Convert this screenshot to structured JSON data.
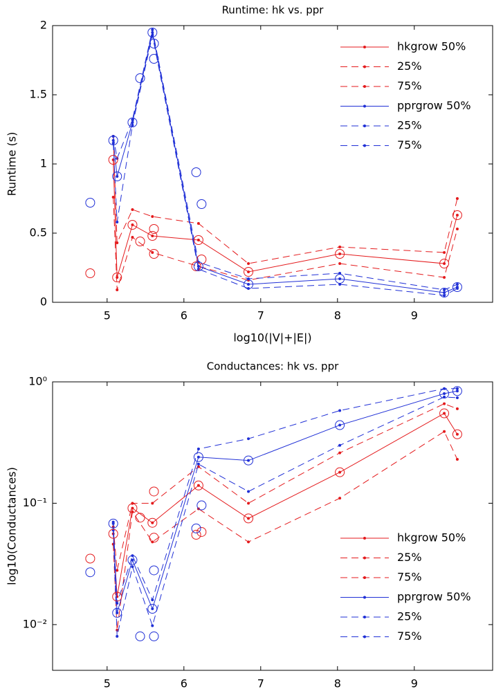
{
  "chart_data": [
    {
      "type": "line",
      "title": "Runtime: hk vs. ppr",
      "xlabel": "log10(|V|+|E|)",
      "ylabel": "Runtime (s)",
      "xlim": [
        4.29,
        10.02
      ],
      "ylim": [
        0,
        2
      ],
      "xticks": [
        5,
        6,
        7,
        8,
        9
      ],
      "yticks": [
        0,
        0.5,
        1,
        1.5,
        2
      ],
      "log_y": false,
      "legend": "upper right",
      "x": [
        5.08,
        5.13,
        5.33,
        5.59,
        6.19,
        6.84,
        8.03,
        9.39,
        9.56
      ],
      "series": [
        {
          "name": "hkgrow 50%",
          "color": "#e41a1c",
          "dashed": false,
          "values": [
            1.03,
            0.18,
            0.56,
            0.48,
            0.45,
            0.22,
            0.35,
            0.28,
            0.63
          ]
        },
        {
          "name": "25%",
          "color": "#e41a1c",
          "dashed": true,
          "values": [
            0.76,
            0.09,
            0.47,
            0.36,
            0.26,
            0.16,
            0.28,
            0.18,
            0.53
          ]
        },
        {
          "name": "75%",
          "color": "#e41a1c",
          "dashed": true,
          "values": [
            1.2,
            0.43,
            0.67,
            0.62,
            0.57,
            0.28,
            0.4,
            0.36,
            0.75
          ]
        },
        {
          "name": "pprgrow 50%",
          "color": "#1f2fd6",
          "dashed": false,
          "values": [
            1.17,
            0.91,
            1.3,
            1.95,
            0.26,
            0.13,
            0.17,
            0.07,
            0.11
          ]
        },
        {
          "name": "25%",
          "color": "#1f2fd6",
          "dashed": true,
          "values": [
            1.15,
            0.58,
            1.28,
            1.93,
            0.24,
            0.1,
            0.13,
            0.05,
            0.1
          ]
        },
        {
          "name": "75%",
          "color": "#1f2fd6",
          "dashed": true,
          "values": [
            1.2,
            1.04,
            1.32,
            1.97,
            0.29,
            0.17,
            0.21,
            0.09,
            0.13
          ]
        }
      ],
      "circles": [
        {
          "color": "#e41a1c",
          "x": [
            4.78,
            5.08,
            5.13,
            5.33,
            5.43,
            5.59,
            5.61,
            6.16,
            6.19,
            6.23,
            6.84,
            8.03,
            9.39,
            9.56
          ],
          "y": [
            0.21,
            1.03,
            0.18,
            0.56,
            0.44,
            0.48,
            0.53,
            0.26,
            0.45,
            0.31,
            0.22,
            0.35,
            0.28,
            0.63
          ]
        },
        {
          "color": "#e41a1c",
          "x": [
            5.61
          ],
          "y": [
            0.35
          ]
        },
        {
          "color": "#1f2fd6",
          "x": [
            4.78,
            5.08,
            5.13,
            5.33,
            5.43,
            5.59,
            5.61,
            5.61,
            6.16,
            6.19,
            6.23,
            6.84,
            8.03,
            9.39,
            9.56
          ],
          "y": [
            0.72,
            1.17,
            0.91,
            1.3,
            1.62,
            1.95,
            1.87,
            1.76,
            0.94,
            0.26,
            0.71,
            0.13,
            0.17,
            0.07,
            0.11
          ]
        }
      ]
    },
    {
      "type": "line",
      "title": "Conductances: hk vs. ppr",
      "xlabel": "log10(|V|+|E|)",
      "ylabel": "log10(Conductances)",
      "xlim": [
        4.29,
        10.02
      ],
      "ylim": [
        0.0042,
        1
      ],
      "xticks": [
        5,
        6,
        7,
        8,
        9
      ],
      "yticks": [
        {
          "value": 0.01,
          "label": "10⁻²"
        },
        {
          "value": 0.1,
          "label": "10⁻¹"
        },
        {
          "value": 1,
          "label": "10⁰"
        }
      ],
      "log_y": true,
      "legend": "lower right",
      "x": [
        5.08,
        5.13,
        5.33,
        5.59,
        6.19,
        6.84,
        8.03,
        9.39,
        9.56
      ],
      "series": [
        {
          "name": "hkgrow 50%",
          "color": "#e41a1c",
          "dashed": false,
          "values": [
            0.056,
            0.017,
            0.091,
            0.069,
            0.14,
            0.075,
            0.18,
            0.55,
            0.37
          ]
        },
        {
          "name": "25%",
          "color": "#e41a1c",
          "dashed": true,
          "values": [
            0.046,
            0.009,
            0.085,
            0.048,
            0.09,
            0.048,
            0.11,
            0.39,
            0.23
          ]
        },
        {
          "name": "75%",
          "color": "#e41a1c",
          "dashed": true,
          "values": [
            0.064,
            0.028,
            0.1,
            0.1,
            0.2,
            0.1,
            0.26,
            0.66,
            0.6
          ]
        },
        {
          "name": "pprgrow 50%",
          "color": "#1f2fd6",
          "dashed": false,
          "values": [
            0.068,
            0.0125,
            0.034,
            0.0135,
            0.24,
            0.225,
            0.44,
            0.8,
            0.84
          ]
        },
        {
          "name": "25%",
          "color": "#1f2fd6",
          "dashed": true,
          "values": [
            0.06,
            0.008,
            0.03,
            0.0098,
            0.21,
            0.125,
            0.3,
            0.75,
            0.74
          ]
        },
        {
          "name": "75%",
          "color": "#1f2fd6",
          "dashed": true,
          "values": [
            0.07,
            0.015,
            0.037,
            0.016,
            0.28,
            0.34,
            0.58,
            0.88,
            0.88
          ]
        }
      ],
      "circles": [
        {
          "color": "#e41a1c",
          "x": [
            4.78,
            5.08,
            5.13,
            5.33,
            5.43,
            5.59,
            5.61,
            5.61,
            6.16,
            6.19,
            6.23,
            6.84,
            8.03,
            9.39,
            9.56
          ],
          "y": [
            0.035,
            0.056,
            0.017,
            0.091,
            0.076,
            0.069,
            0.125,
            0.052,
            0.055,
            0.14,
            0.058,
            0.075,
            0.18,
            0.55,
            0.37
          ]
        },
        {
          "color": "#1f2fd6",
          "x": [
            4.78,
            5.08,
            5.13,
            5.33,
            5.43,
            5.59,
            5.61,
            5.61,
            6.16,
            6.19,
            6.23,
            6.84,
            8.03,
            9.39,
            9.56
          ],
          "y": [
            0.027,
            0.068,
            0.0125,
            0.034,
            0.008,
            0.0135,
            0.008,
            0.028,
            0.062,
            0.24,
            0.096,
            0.225,
            0.44,
            0.8,
            0.84
          ]
        }
      ]
    }
  ]
}
